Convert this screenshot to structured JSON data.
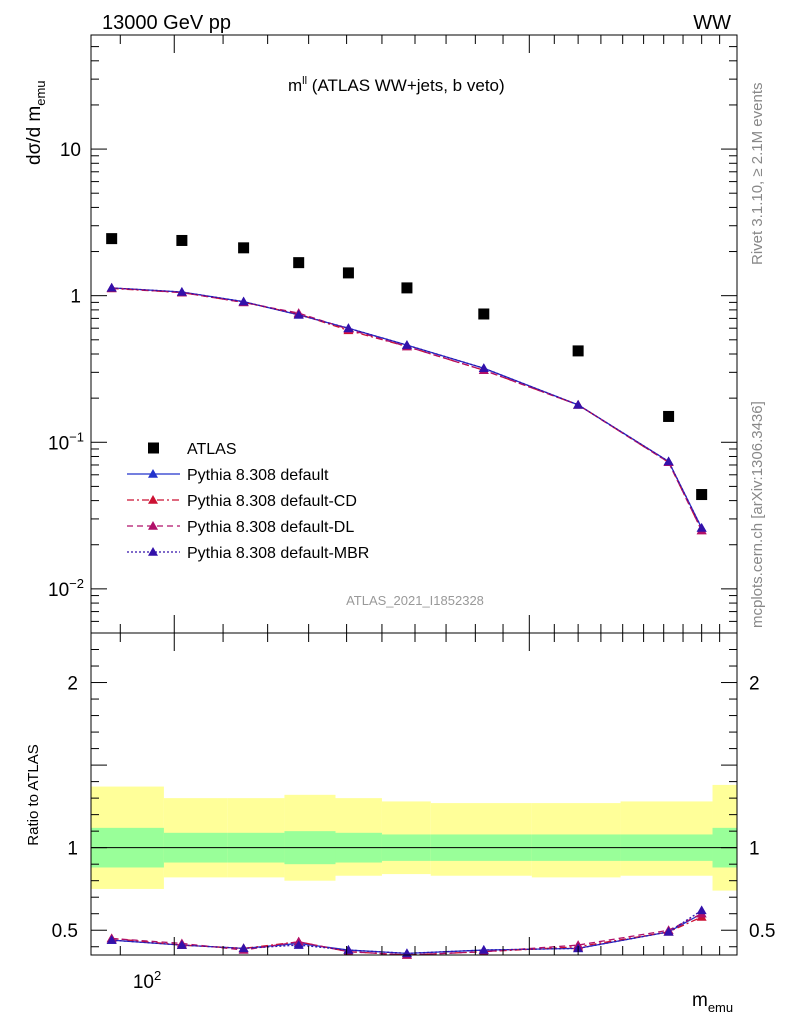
{
  "header": {
    "left": "13000 GeV pp",
    "right": "WW"
  },
  "side_text": {
    "rivet": "Rivet 3.1.10, ≥ 2.1M events",
    "mcplots": "mcplots.cern.ch [arXiv:1306.3436]"
  },
  "chart_data": [
    {
      "type": "scatter",
      "title_main": "m",
      "title_sup": "ll",
      "title_rest": " (ATLAS WW+jets, b veto)",
      "ylabel_main": "dσ/d m",
      "ylabel_sub": "emu",
      "xlabel_main": "m",
      "xlabel_sub": "emu",
      "watermark": "ATLAS_2021_I1852328",
      "xscale": "log",
      "yscale": "log",
      "xlim": [
        85,
        300
      ],
      "ylim": [
        0.005,
        60
      ],
      "x_tick_label": "10",
      "x_tick_label_sup": "2",
      "y_tick_labels": [
        {
          "value": 10,
          "main": "10",
          "sup": ""
        },
        {
          "value": 1,
          "main": "1",
          "sup": ""
        },
        {
          "value": 0.1,
          "main": "10",
          "sup": "−1"
        },
        {
          "value": 0.01,
          "main": "10",
          "sup": "−2"
        }
      ],
      "legend_position": "lower-left",
      "x": [
        88.5,
        101.5,
        114.5,
        127.5,
        140.5,
        157.5,
        183,
        220,
        262.5,
        280
      ],
      "xbins": [
        [
          85,
          98
        ],
        [
          98,
          111
        ],
        [
          111,
          124
        ],
        [
          124,
          137
        ],
        [
          137,
          150
        ],
        [
          150,
          165
        ],
        [
          165,
          201
        ],
        [
          201,
          239
        ],
        [
          239,
          286
        ],
        [
          286,
          300
        ]
      ],
      "series": [
        {
          "name": "ATLAS",
          "style": "data",
          "color": "#000000",
          "values": [
            2.45,
            2.38,
            2.12,
            1.68,
            1.43,
            1.13,
            0.75,
            0.42,
            0.15,
            0.044
          ]
        },
        {
          "name": "Pythia 8.308 default",
          "style": "solid",
          "color": "#2233cc",
          "values": [
            1.13,
            1.06,
            0.91,
            0.74,
            0.6,
            0.46,
            0.32,
            0.18,
            0.074,
            0.026
          ]
        },
        {
          "name": "Pythia 8.308 default-CD",
          "style": "dashdot",
          "color": "#cc1133",
          "values": [
            1.12,
            1.05,
            0.9,
            0.75,
            0.58,
            0.45,
            0.31,
            0.18,
            0.073,
            0.025
          ]
        },
        {
          "name": "Pythia 8.308 default-DL",
          "style": "dashed",
          "color": "#b0106a",
          "values": [
            1.13,
            1.05,
            0.9,
            0.76,
            0.59,
            0.45,
            0.31,
            0.18,
            0.073,
            0.025
          ]
        },
        {
          "name": "Pythia 8.308 default-MBR",
          "style": "dotted",
          "color": "#3311aa",
          "values": [
            1.13,
            1.06,
            0.91,
            0.74,
            0.6,
            0.46,
            0.32,
            0.18,
            0.074,
            0.026
          ]
        }
      ]
    },
    {
      "type": "scatter",
      "ylabel": "Ratio to ATLAS",
      "xscale": "log",
      "xlim": [
        85,
        300
      ],
      "ylim": [
        0.35,
        2.3
      ],
      "y_tick_labels": [
        {
          "value": 0.5,
          "main": "0.5"
        },
        {
          "value": 1,
          "main": "1"
        },
        {
          "value": 2,
          "main": "2"
        }
      ],
      "band_green": [
        [
          0.88,
          1.12
        ],
        [
          0.91,
          1.09
        ],
        [
          0.91,
          1.09
        ],
        [
          0.9,
          1.1
        ],
        [
          0.91,
          1.09
        ],
        [
          0.92,
          1.08
        ],
        [
          0.92,
          1.08
        ],
        [
          0.92,
          1.08
        ],
        [
          0.92,
          1.08
        ],
        [
          0.88,
          1.12
        ]
      ],
      "band_yellow": [
        [
          0.75,
          1.37
        ],
        [
          0.82,
          1.3
        ],
        [
          0.82,
          1.3
        ],
        [
          0.8,
          1.32
        ],
        [
          0.83,
          1.3
        ],
        [
          0.84,
          1.28
        ],
        [
          0.83,
          1.27
        ],
        [
          0.82,
          1.27
        ],
        [
          0.83,
          1.28
        ],
        [
          0.74,
          1.38
        ]
      ],
      "series": [
        {
          "name": "Pythia 8.308 default",
          "style": "solid",
          "color": "#2233cc",
          "values": [
            0.44,
            0.41,
            0.39,
            0.42,
            0.38,
            0.36,
            0.38,
            0.39,
            0.49,
            0.6
          ]
        },
        {
          "name": "Pythia 8.308 default-CD",
          "style": "dashdot",
          "color": "#cc1133",
          "values": [
            0.45,
            0.41,
            0.39,
            0.43,
            0.37,
            0.35,
            0.37,
            0.4,
            0.49,
            0.58
          ]
        },
        {
          "name": "Pythia 8.308 default-DL",
          "style": "dashed",
          "color": "#b0106a",
          "values": [
            0.45,
            0.42,
            0.38,
            0.43,
            0.37,
            0.35,
            0.37,
            0.41,
            0.5,
            0.6
          ]
        },
        {
          "name": "Pythia 8.308 default-MBR",
          "style": "dotted",
          "color": "#3311aa",
          "values": [
            0.44,
            0.41,
            0.39,
            0.41,
            0.38,
            0.36,
            0.38,
            0.39,
            0.49,
            0.62
          ]
        }
      ]
    }
  ]
}
